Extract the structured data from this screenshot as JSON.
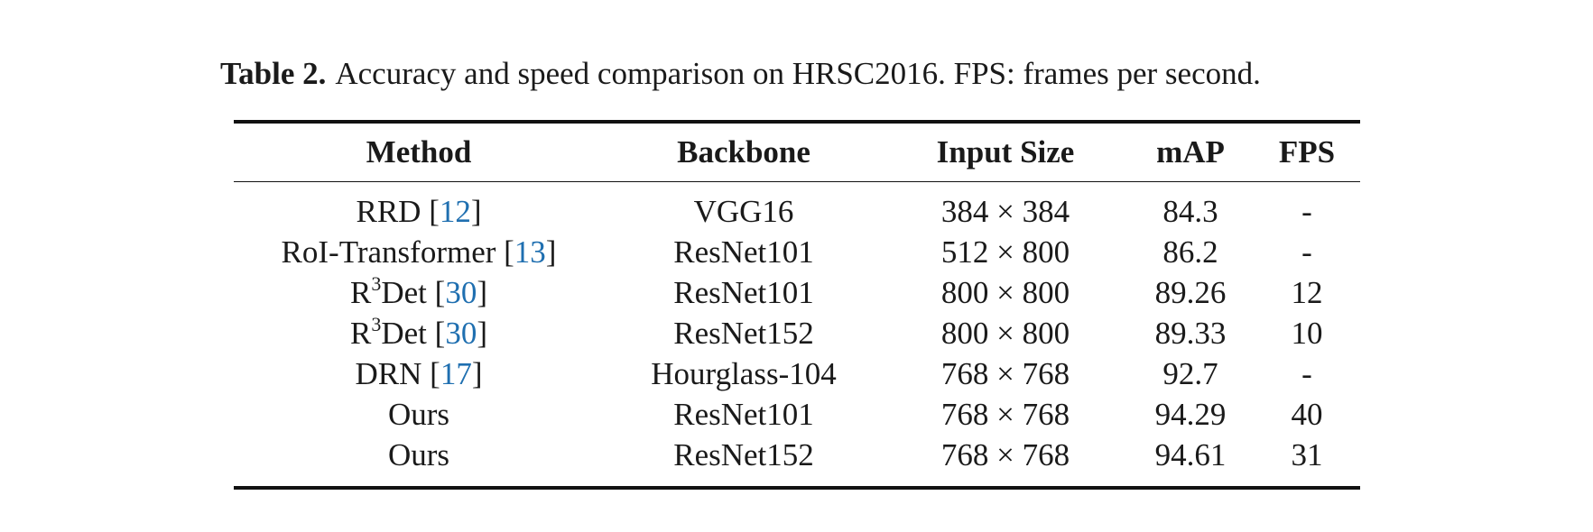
{
  "caption": {
    "label": "Table 2.",
    "text": "Accuracy and speed comparison on HRSC2016. FPS: frames per second."
  },
  "table": {
    "headers": [
      "Method",
      "Backbone",
      "Input Size",
      "mAP",
      "FPS"
    ],
    "rows": [
      {
        "method": "RRD",
        "method_sup": "",
        "method_rest": "",
        "cite": "12",
        "backbone": "VGG16",
        "input_size": "384 × 384",
        "map": "84.3",
        "fps": "-"
      },
      {
        "method": "RoI-Transformer",
        "method_sup": "",
        "method_rest": "",
        "cite": "13",
        "backbone": "ResNet101",
        "input_size": "512 × 800",
        "map": "86.2",
        "fps": "-"
      },
      {
        "method": "R",
        "method_sup": "3",
        "method_rest": "Det",
        "cite": "30",
        "backbone": "ResNet101",
        "input_size": "800 × 800",
        "map": "89.26",
        "fps": "12"
      },
      {
        "method": "R",
        "method_sup": "3",
        "method_rest": "Det",
        "cite": "30",
        "backbone": "ResNet152",
        "input_size": "800 × 800",
        "map": "89.33",
        "fps": "10"
      },
      {
        "method": "DRN",
        "method_sup": "",
        "method_rest": "",
        "cite": "17",
        "backbone": "Hourglass-104",
        "input_size": "768 × 768",
        "map": "92.7",
        "fps": "-"
      },
      {
        "method": "Ours",
        "method_sup": "",
        "method_rest": "",
        "cite": "",
        "backbone": "ResNet101",
        "input_size": "768 × 768",
        "map": "94.29",
        "fps": "40"
      },
      {
        "method": "Ours",
        "method_sup": "",
        "method_rest": "",
        "cite": "",
        "backbone": "ResNet152",
        "input_size": "768 × 768",
        "map": "94.61",
        "fps": "31"
      }
    ]
  }
}
